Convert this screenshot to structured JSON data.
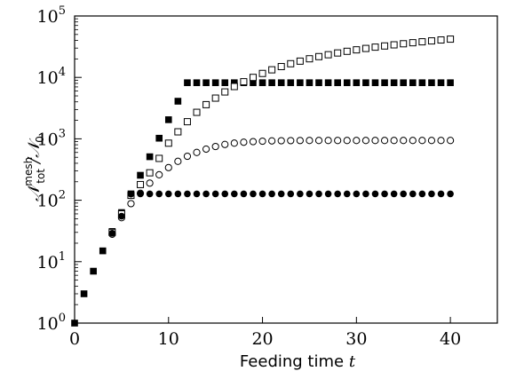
{
  "chart_data": {
    "type": "scatter",
    "xlabel": "Feeding time",
    "xlabel_var": "t",
    "ylabel_main": "𝒩",
    "ylabel_sup": "mesh",
    "ylabel_sub": "tot",
    "ylabel_div": "/𝒩",
    "ylabel_sub0": "0",
    "xlim": [
      0,
      45
    ],
    "ylim": [
      1,
      100000
    ],
    "yscale": "log",
    "xticks": [
      0,
      10,
      20,
      30,
      40
    ],
    "yticks": [
      {
        "value": 1,
        "base": "10",
        "exp": "0"
      },
      {
        "value": 10,
        "base": "10",
        "exp": "1"
      },
      {
        "value": 100,
        "base": "10",
        "exp": "2"
      },
      {
        "value": 1000,
        "base": "10",
        "exp": "3"
      },
      {
        "value": 10000,
        "base": "10",
        "exp": "4"
      },
      {
        "value": 100000,
        "base": "10",
        "exp": "5"
      }
    ],
    "grid": false,
    "series": [
      {
        "marker": "square-filled",
        "x": [
          0,
          1,
          2,
          3,
          4,
          5,
          6,
          7,
          8,
          9,
          10,
          11,
          12,
          13,
          14,
          15,
          16,
          17,
          18,
          19,
          20,
          21,
          22,
          23,
          24,
          25,
          26,
          27,
          28,
          29,
          30,
          31,
          32,
          33,
          34,
          35,
          36,
          37,
          38,
          39,
          40
        ],
        "y": [
          1,
          3,
          7,
          15,
          31,
          63,
          127,
          255,
          511,
          1023,
          2047,
          4095,
          8191,
          8191,
          8191,
          8191,
          8191,
          8191,
          8191,
          8191,
          8191,
          8191,
          8191,
          8191,
          8191,
          8191,
          8191,
          8191,
          8191,
          8191,
          8191,
          8191,
          8191,
          8191,
          8191,
          8191,
          8191,
          8191,
          8191,
          8191,
          8191
        ]
      },
      {
        "marker": "square-open",
        "x": [
          4,
          5,
          6,
          7,
          8,
          9,
          10,
          11,
          12,
          13,
          14,
          15,
          16,
          17,
          18,
          19,
          20,
          21,
          22,
          23,
          24,
          25,
          26,
          27,
          28,
          29,
          30,
          31,
          32,
          33,
          34,
          35,
          36,
          37,
          38,
          39,
          40
        ],
        "y": [
          30,
          60,
          120,
          180,
          280,
          480,
          850,
          1300,
          1900,
          2700,
          3600,
          4600,
          5800,
          7100,
          8500,
          10000,
          11600,
          13300,
          15000,
          16700,
          18400,
          20100,
          21800,
          23400,
          25000,
          26600,
          28100,
          29600,
          31100,
          32500,
          33900,
          35300,
          36700,
          38000,
          39300,
          40700,
          42000
        ]
      },
      {
        "marker": "circle-open",
        "x": [
          4,
          5,
          6,
          7,
          8,
          9,
          10,
          11,
          12,
          13,
          14,
          15,
          16,
          17,
          18,
          19,
          20,
          21,
          22,
          23,
          24,
          25,
          26,
          27,
          28,
          29,
          30,
          31,
          32,
          33,
          34,
          35,
          36,
          37,
          38,
          39,
          40
        ],
        "y": [
          28,
          52,
          88,
          130,
          190,
          260,
          340,
          430,
          520,
          600,
          680,
          750,
          810,
          850,
          880,
          900,
          915,
          925,
          930,
          935,
          938,
          940,
          940,
          940,
          940,
          940,
          940,
          940,
          940,
          940,
          940,
          940,
          940,
          940,
          940,
          940,
          940
        ]
      },
      {
        "marker": "circle-filled",
        "x": [
          4,
          5,
          6,
          7,
          8,
          9,
          10,
          11,
          12,
          13,
          14,
          15,
          16,
          17,
          18,
          19,
          20,
          21,
          22,
          23,
          24,
          25,
          26,
          27,
          28,
          29,
          30,
          31,
          32,
          33,
          34,
          35,
          36,
          37,
          38,
          39,
          40
        ],
        "y": [
          29,
          55,
          126,
          127,
          127,
          127,
          127,
          127,
          127,
          127,
          127,
          127,
          127,
          127,
          127,
          127,
          127,
          127,
          127,
          127,
          127,
          127,
          127,
          127,
          127,
          127,
          127,
          127,
          127,
          127,
          127,
          127,
          127,
          127,
          127,
          127,
          127
        ]
      }
    ]
  }
}
